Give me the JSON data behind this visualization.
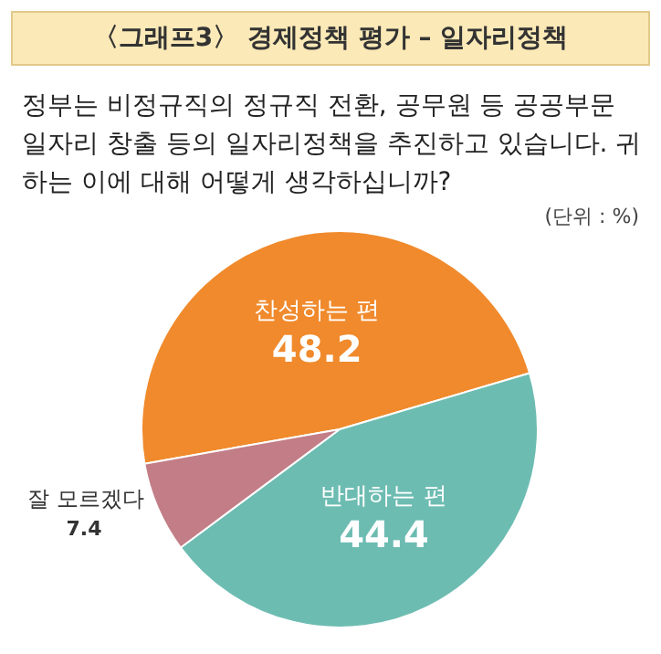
{
  "chart_data": {
    "type": "pie",
    "title": "〈그래프3〉 경제정책 평가 – 일자리정책",
    "subtitle": "정부는 비정규직의 정규직 전환, 공무원 등 공공부문 일자리 창출 등의 일자리정책을 추진하고 있습니다. 귀하는 이에 대해 어떻게 생각하십니까?",
    "annotations": [
      "(단위 : %)"
    ],
    "categories": [
      "찬성하는 편",
      "반대하는 편",
      "잘 모르겠다"
    ],
    "values": [
      48.2,
      44.4,
      7.4
    ],
    "colors": [
      "#f08a2c",
      "#6dbcb2",
      "#c27d86"
    ],
    "data_labels": true,
    "legend": false
  }
}
